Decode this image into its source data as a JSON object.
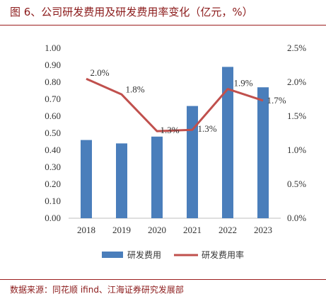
{
  "figure_title": "图 6、公司研发费用及研发费用率变化（亿元，%）",
  "source_note": "数据来源：同花顺 ifind、江海证券研究发展部",
  "chart_data": {
    "type": "bar",
    "categories": [
      "2018",
      "2019",
      "2020",
      "2021",
      "2022",
      "2023"
    ],
    "series": [
      {
        "name": "研发费用",
        "type": "bar",
        "axis": "left",
        "values": [
          0.46,
          0.44,
          0.48,
          0.66,
          0.89,
          0.77
        ],
        "color": "#4A7EBB"
      },
      {
        "name": "研发费用率",
        "type": "line",
        "axis": "right",
        "values": [
          2.05,
          1.82,
          1.28,
          1.3,
          1.9,
          1.73
        ],
        "data_labels": [
          "2.0%",
          "1.8%",
          "1.3%",
          "1.3%",
          "1.9%",
          "1.7%"
        ],
        "color": "#C0504D"
      }
    ],
    "y_left": {
      "min": 0,
      "max": 1.0,
      "ticks": [
        "0.00",
        "0.10",
        "0.20",
        "0.30",
        "0.40",
        "0.50",
        "0.60",
        "0.70",
        "0.80",
        "0.90",
        "1.00"
      ]
    },
    "y_right": {
      "min": 0,
      "max": 2.5,
      "ticks": [
        "0.0%",
        "0.5%",
        "1.0%",
        "1.5%",
        "2.0%",
        "2.5%"
      ]
    },
    "grid": false,
    "legend_position": "bottom"
  }
}
